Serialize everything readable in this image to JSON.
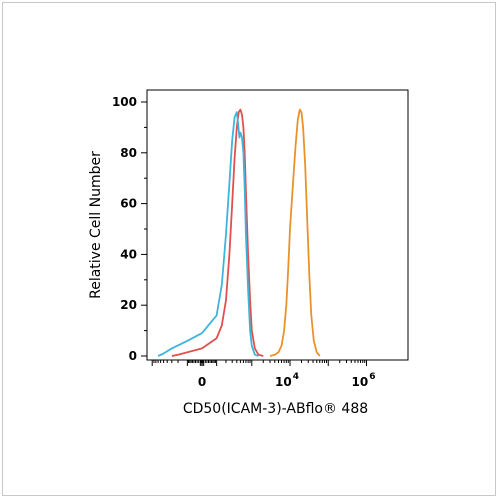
{
  "chart_data": {
    "type": "line",
    "xlabel": "CD50(ICAM-3)-ABflo® 488",
    "ylabel": "Relative Cell Number",
    "x_scale": "biexponential",
    "x_tick_labels": [
      {
        "value": 0,
        "base": "0",
        "exp": ""
      },
      {
        "value": 10000,
        "base": "10",
        "exp": "4"
      },
      {
        "value": 1000000,
        "base": "10",
        "exp": "6"
      }
    ],
    "ylim": [
      0,
      100
    ],
    "y_ticks": [
      0,
      20,
      40,
      60,
      80,
      100
    ],
    "grid": false,
    "series": [
      {
        "color": "#e0504e",
        "points": [
          [
            -300,
            0
          ],
          [
            -200,
            0.5
          ],
          [
            -100,
            1.5
          ],
          [
            0,
            3
          ],
          [
            100,
            7
          ],
          [
            150,
            12
          ],
          [
            200,
            22
          ],
          [
            250,
            40
          ],
          [
            300,
            60
          ],
          [
            350,
            78
          ],
          [
            400,
            90
          ],
          [
            450,
            96
          ],
          [
            500,
            97
          ],
          [
            550,
            95
          ],
          [
            600,
            90
          ],
          [
            650,
            80
          ],
          [
            700,
            65
          ],
          [
            800,
            40
          ],
          [
            900,
            22
          ],
          [
            1000,
            10
          ],
          [
            1200,
            3
          ],
          [
            1500,
            0.5
          ],
          [
            2000,
            0
          ]
        ]
      },
      {
        "color": "#3cb4dc",
        "points": [
          [
            -700,
            0
          ],
          [
            -500,
            1
          ],
          [
            -300,
            3
          ],
          [
            -100,
            6
          ],
          [
            0,
            9
          ],
          [
            100,
            16
          ],
          [
            150,
            28
          ],
          [
            200,
            48
          ],
          [
            250,
            68
          ],
          [
            300,
            85
          ],
          [
            350,
            94
          ],
          [
            400,
            96
          ],
          [
            430,
            92
          ],
          [
            470,
            86
          ],
          [
            500,
            88
          ],
          [
            550,
            86
          ],
          [
            600,
            80
          ],
          [
            650,
            66
          ],
          [
            700,
            48
          ],
          [
            800,
            26
          ],
          [
            900,
            10
          ],
          [
            1000,
            4
          ],
          [
            1200,
            0.5
          ],
          [
            1500,
            0
          ]
        ]
      },
      {
        "color": "#e8922b",
        "points": [
          [
            3000,
            0
          ],
          [
            4000,
            0.5
          ],
          [
            5000,
            1.5
          ],
          [
            6000,
            4
          ],
          [
            7000,
            10
          ],
          [
            8000,
            20
          ],
          [
            9000,
            35
          ],
          [
            10000,
            50
          ],
          [
            12000,
            68
          ],
          [
            14000,
            83
          ],
          [
            16000,
            93
          ],
          [
            18000,
            97
          ],
          [
            20000,
            96
          ],
          [
            22000,
            90
          ],
          [
            25000,
            75
          ],
          [
            28000,
            55
          ],
          [
            32000,
            32
          ],
          [
            36000,
            16
          ],
          [
            42000,
            6
          ],
          [
            50000,
            1.5
          ],
          [
            60000,
            0
          ]
        ]
      }
    ]
  }
}
